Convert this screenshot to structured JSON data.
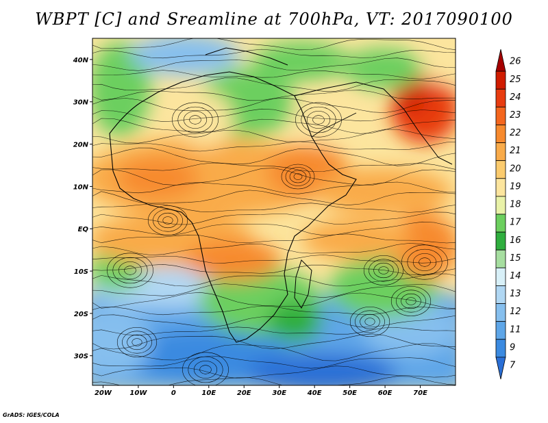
{
  "title": "WBPT [C] and Sreamline at 700hPa, VT: 2017090100",
  "credit": "GrADS: IGES/COLA",
  "map": {
    "lon_labels": [
      "20W",
      "10W",
      "0",
      "10E",
      "20E",
      "30E",
      "40E",
      "50E",
      "60E",
      "70E"
    ],
    "lat_labels": [
      "40N",
      "30N",
      "20N",
      "10N",
      "EQ",
      "10S",
      "20S",
      "30S"
    ],
    "lon_range": [
      -23,
      80
    ],
    "lat_range": [
      -37,
      45
    ]
  },
  "colorbar": {
    "levels": [
      "26",
      "25",
      "24",
      "23",
      "22",
      "21",
      "20",
      "19",
      "18",
      "17",
      "16",
      "15",
      "14",
      "13",
      "12",
      "11",
      "9",
      "7"
    ],
    "colors": [
      "#a50000",
      "#d01c00",
      "#e83c10",
      "#f4661e",
      "#f78a2e",
      "#f9ab4a",
      "#fbcb6e",
      "#fce59e",
      "#e9f2a8",
      "#6ccf5e",
      "#2fae3e",
      "#a6dea0",
      "#d8f0f8",
      "#b0d7f3",
      "#86bfee",
      "#5ea6e8",
      "#3b8ae0",
      "#2a6fd6"
    ]
  }
}
